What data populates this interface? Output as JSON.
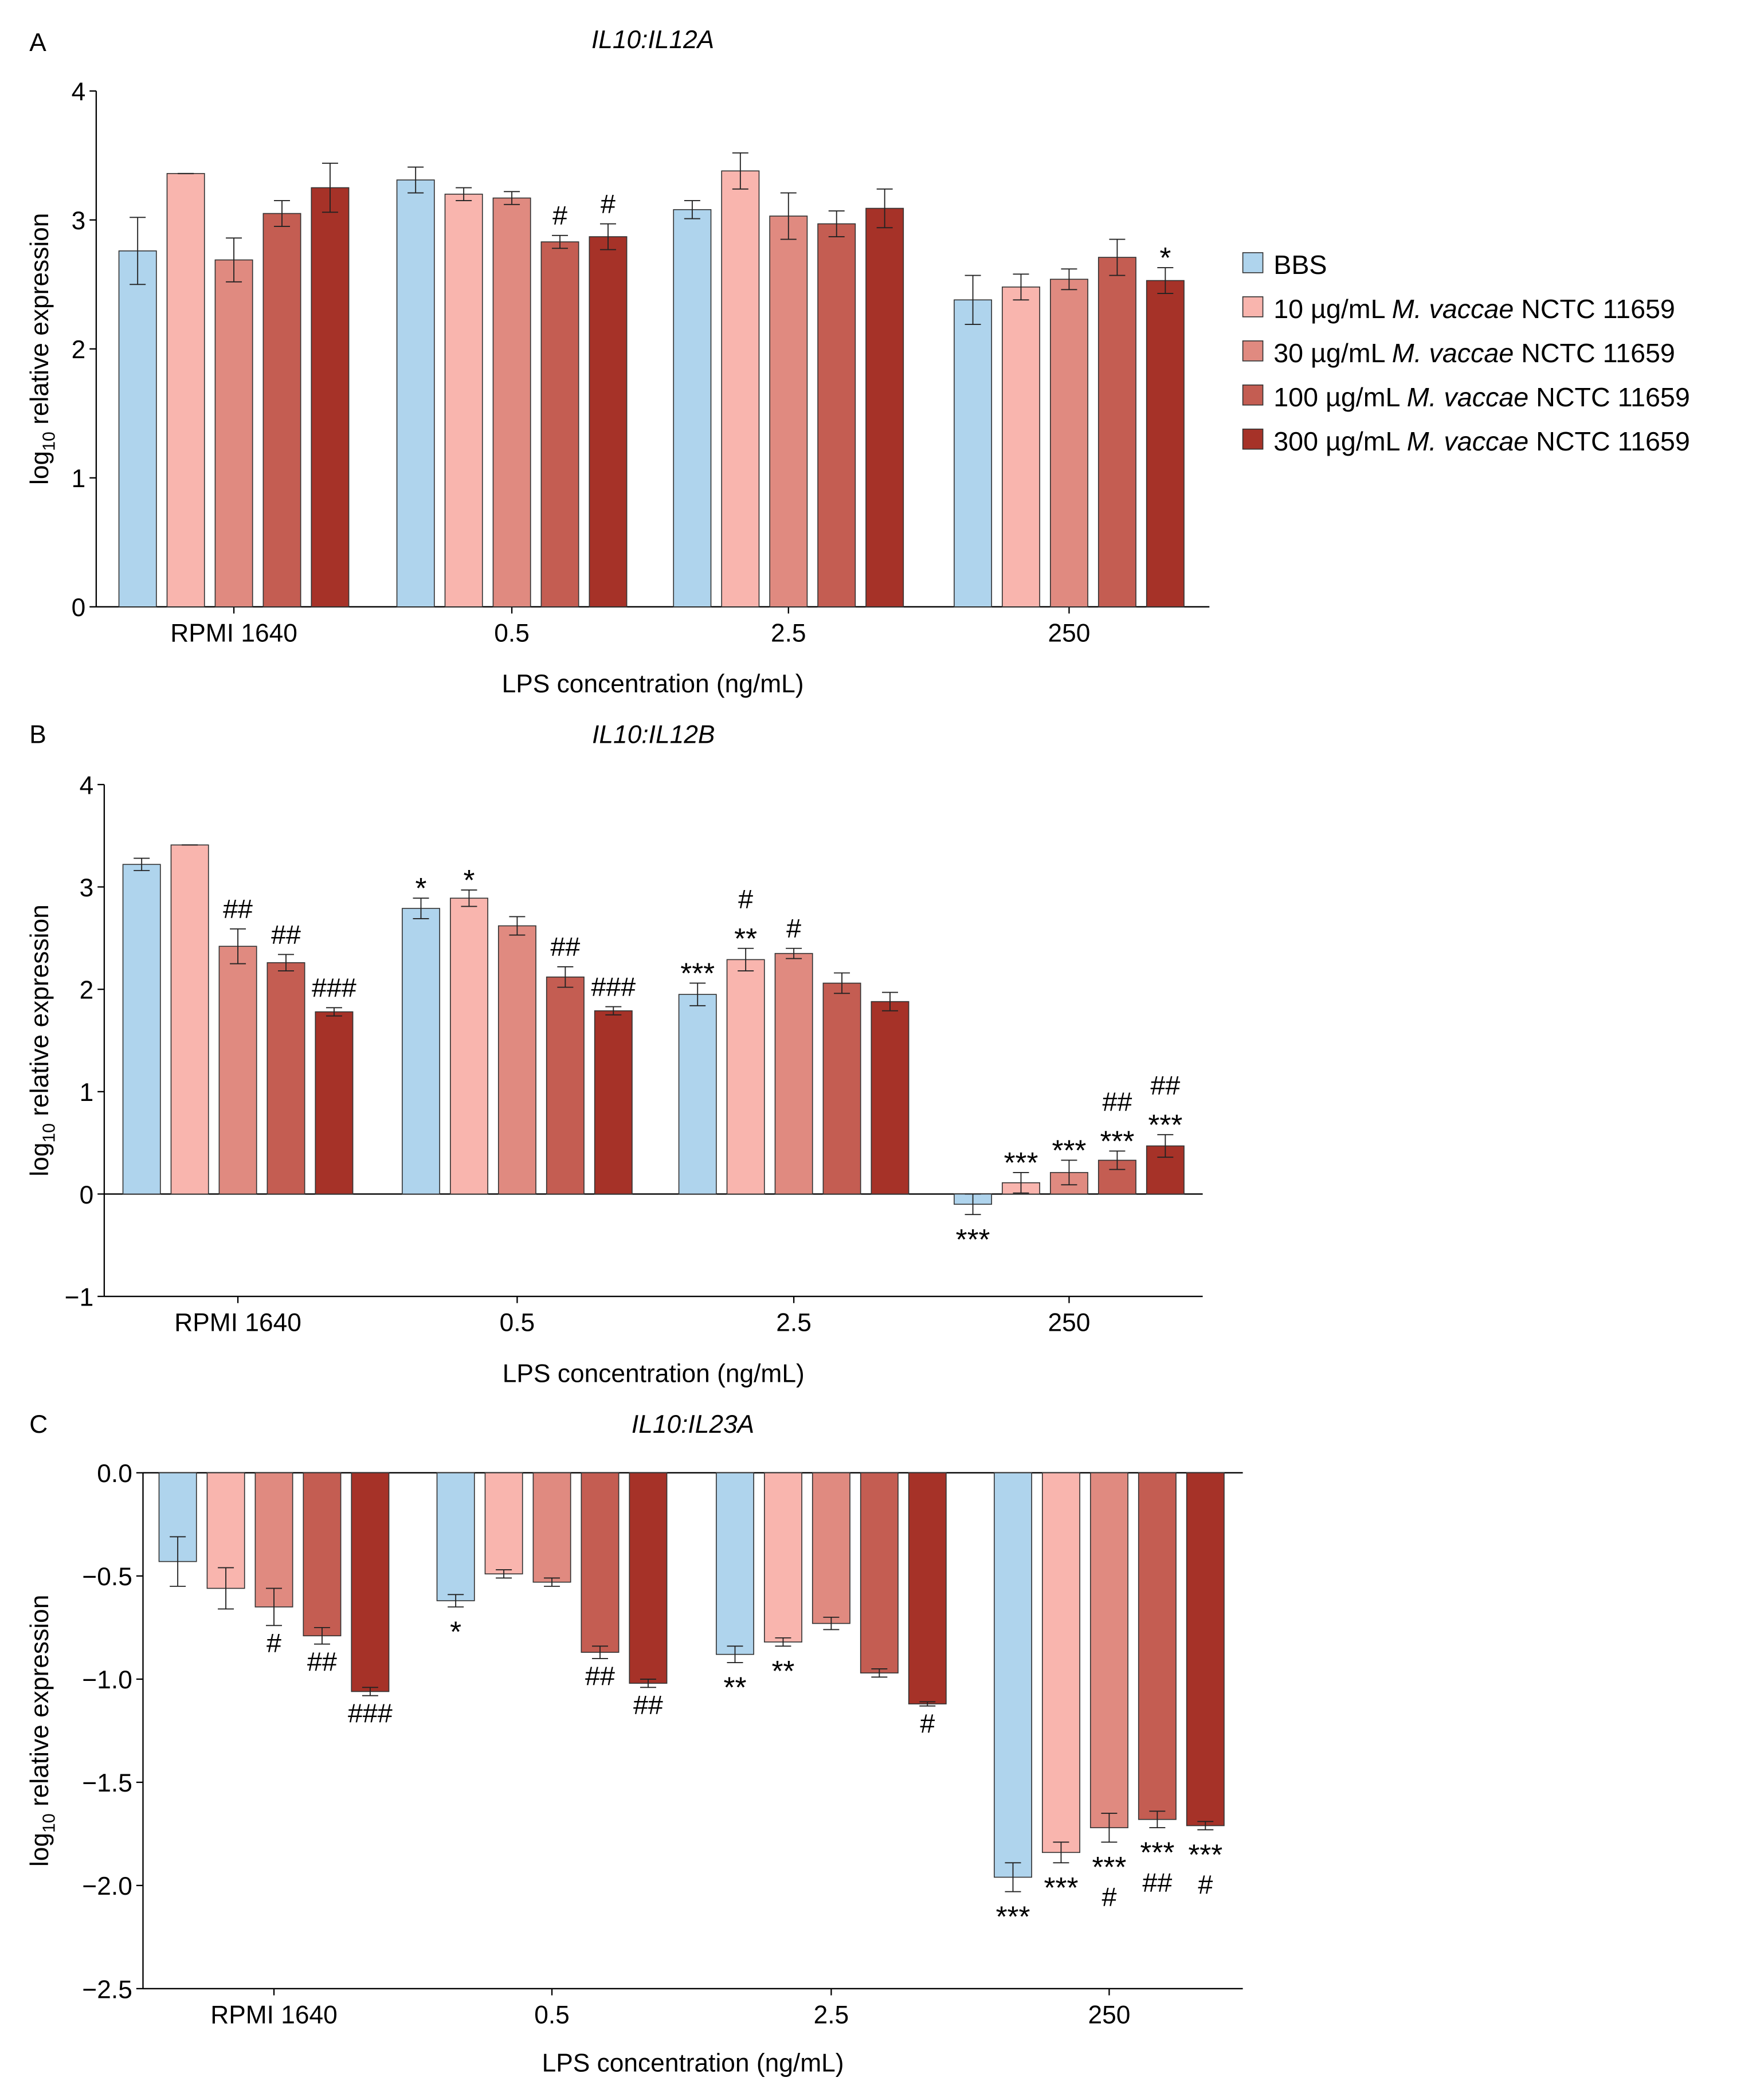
{
  "legend": {
    "items": [
      {
        "parts": [
          "BBS"
        ],
        "color": "#afd4ed"
      },
      {
        "parts": [
          "10 µg/mL ",
          "M. vaccae",
          " NCTC 11659"
        ],
        "color": "#f9b5ae"
      },
      {
        "parts": [
          "30 µg/mL ",
          "M. vaccae",
          " NCTC 11659"
        ],
        "color": "#e08a80"
      },
      {
        "parts": [
          "100 µg/mL ",
          "M. vaccae",
          " NCTC 11659"
        ],
        "color": "#c45d52"
      },
      {
        "parts": [
          "300 µg/mL ",
          "M. vaccae",
          " NCTC 11659"
        ],
        "color": "#a63228"
      }
    ]
  },
  "chart_data": [
    {
      "panel": "A",
      "type": "bar",
      "title": "IL10:IL12A",
      "xlabel": "LPS concentration (ng/mL)",
      "ylabel_parts": [
        "log",
        "10",
        " relative expression"
      ],
      "ylim": [
        0,
        4
      ],
      "yticks": [
        "0",
        "1",
        "2",
        "3",
        "4"
      ],
      "ytick_values": [
        0,
        1,
        2,
        3,
        4
      ],
      "categories": [
        "RPMI 1640",
        "0.5",
        "2.5",
        "250"
      ],
      "series": [
        {
          "name": "BBS",
          "values": [
            2.76,
            3.31,
            3.08,
            2.38
          ],
          "errors": [
            0.26,
            0.1,
            0.07,
            0.19
          ]
        },
        {
          "name": "10 µg/mL M. vaccae NCTC 11659",
          "values": [
            3.36,
            3.2,
            3.38,
            2.48
          ],
          "errors": [
            0,
            0.05,
            0.14,
            0.1
          ]
        },
        {
          "name": "30 µg/mL M. vaccae NCTC 11659",
          "values": [
            2.69,
            3.17,
            3.03,
            2.54
          ],
          "errors": [
            0.17,
            0.05,
            0.18,
            0.08
          ]
        },
        {
          "name": "100 µg/mL M. vaccae NCTC 11659",
          "values": [
            3.05,
            2.83,
            2.97,
            2.71
          ],
          "errors": [
            0.1,
            0.05,
            0.1,
            0.14
          ]
        },
        {
          "name": "300 µg/mL M. vaccae NCTC 11659",
          "values": [
            3.25,
            2.87,
            3.09,
            2.53
          ],
          "errors": [
            0.19,
            0.1,
            0.15,
            0.1
          ]
        }
      ],
      "annotations": [
        [
          [],
          [],
          [],
          [],
          []
        ],
        [
          [],
          [],
          [],
          [
            "#"
          ],
          [
            "#"
          ]
        ],
        [
          [],
          [],
          [],
          [],
          []
        ],
        [
          [],
          [],
          [],
          [],
          [
            "*"
          ]
        ]
      ]
    },
    {
      "panel": "B",
      "type": "bar",
      "title": "IL10:IL12B",
      "xlabel": "LPS concentration (ng/mL)",
      "ylabel_parts": [
        "log",
        "10",
        " relative expression"
      ],
      "ylim": [
        -1,
        4
      ],
      "yticks": [
        "−1",
        "0",
        "1",
        "2",
        "3",
        "4"
      ],
      "ytick_values": [
        -1,
        0,
        1,
        2,
        3,
        4
      ],
      "categories": [
        "RPMI 1640",
        "0.5",
        "2.5",
        "250"
      ],
      "series": [
        {
          "name": "BBS",
          "values": [
            3.22,
            2.79,
            1.95,
            -0.1
          ],
          "errors": [
            0.06,
            0.1,
            0.11,
            0.1
          ]
        },
        {
          "name": "10 µg/mL M. vaccae NCTC 11659",
          "values": [
            3.41,
            2.89,
            2.29,
            0.11
          ],
          "errors": [
            0,
            0.08,
            0.11,
            0.1
          ]
        },
        {
          "name": "30 µg/mL M. vaccae NCTC 11659",
          "values": [
            2.42,
            2.62,
            2.35,
            0.21
          ],
          "errors": [
            0.17,
            0.09,
            0.05,
            0.12
          ]
        },
        {
          "name": "100 µg/mL M. vaccae NCTC 11659",
          "values": [
            2.26,
            2.12,
            2.06,
            0.33
          ],
          "errors": [
            0.08,
            0.1,
            0.1,
            0.09
          ]
        },
        {
          "name": "300 µg/mL M. vaccae NCTC 11659",
          "values": [
            1.78,
            1.79,
            1.88,
            0.47
          ],
          "errors": [
            0.04,
            0.04,
            0.09,
            0.11
          ]
        }
      ],
      "annotations": [
        [
          [],
          [],
          [
            "##"
          ],
          [
            "##"
          ],
          [
            "###"
          ]
        ],
        [
          [
            "*"
          ],
          [
            "*"
          ],
          [],
          [
            "##"
          ],
          [
            "###"
          ]
        ],
        [
          [
            "***"
          ],
          [
            "#",
            "**"
          ],
          [
            "#"
          ],
          [],
          []
        ],
        [
          [
            "***"
          ],
          [
            "***"
          ],
          [
            "***"
          ],
          [
            "##",
            "***"
          ],
          [
            "##",
            "***"
          ]
        ]
      ]
    },
    {
      "panel": "C",
      "type": "bar",
      "title": "IL10:IL23A",
      "xlabel": "LPS concentration (ng/mL)",
      "ylabel_parts": [
        "log",
        "10",
        " relative expression"
      ],
      "ylim": [
        -2.5,
        0
      ],
      "yticks": [
        "−2.5",
        "−2.0",
        "−1.5",
        "−1.0",
        "−0.5",
        "0.0"
      ],
      "ytick_values": [
        -2.5,
        -2,
        -1.5,
        -1,
        -0.5,
        0
      ],
      "categories": [
        "RPMI 1640",
        "0.5",
        "2.5",
        "250"
      ],
      "series": [
        {
          "name": "BBS",
          "values": [
            -0.43,
            -0.62,
            -0.88,
            -1.96
          ],
          "errors": [
            0.12,
            0.03,
            0.04,
            0.07
          ]
        },
        {
          "name": "10 µg/mL M. vaccae NCTC 11659",
          "values": [
            -0.56,
            -0.49,
            -0.82,
            -1.84
          ],
          "errors": [
            0.1,
            0.02,
            0.02,
            0.05
          ]
        },
        {
          "name": "30 µg/mL M. vaccae NCTC 11659",
          "values": [
            -0.65,
            -0.53,
            -0.73,
            -1.72
          ],
          "errors": [
            0.09,
            0.02,
            0.03,
            0.07
          ]
        },
        {
          "name": "100 µg/mL M. vaccae NCTC 11659",
          "values": [
            -0.79,
            -0.87,
            -0.97,
            -1.68
          ],
          "errors": [
            0.04,
            0.03,
            0.02,
            0.04
          ]
        },
        {
          "name": "300 µg/mL M. vaccae NCTC 11659",
          "values": [
            -1.06,
            -1.02,
            -1.12,
            -1.71
          ],
          "errors": [
            0.02,
            0.02,
            0.01,
            0.02
          ]
        }
      ],
      "annotations": [
        [
          [],
          [],
          [
            "#"
          ],
          [
            "##"
          ],
          [
            "###"
          ]
        ],
        [
          [
            "*"
          ],
          [],
          [],
          [
            "##"
          ],
          [
            "##"
          ]
        ],
        [
          [
            "**"
          ],
          [
            "**"
          ],
          [],
          [],
          [
            "#"
          ]
        ],
        [
          [
            "***"
          ],
          [
            "***"
          ],
          [
            "***",
            "#"
          ],
          [
            "***",
            "##"
          ],
          [
            "***",
            "#"
          ]
        ]
      ]
    }
  ]
}
